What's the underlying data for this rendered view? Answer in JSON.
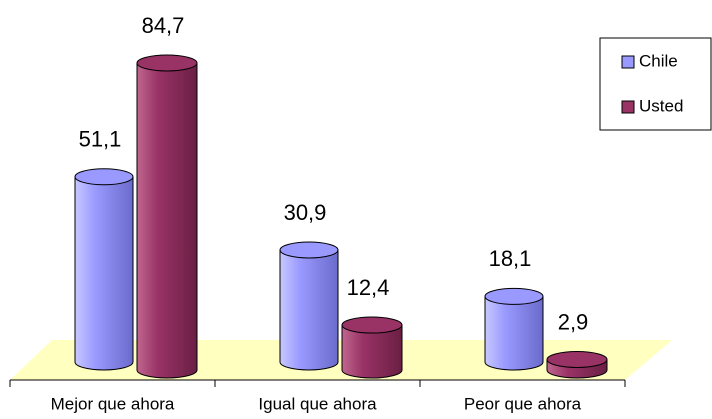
{
  "chart_data": {
    "type": "bar",
    "categories": [
      "Mejor que ahora",
      "Igual que ahora",
      "Peor que ahora"
    ],
    "series": [
      {
        "name": "Chile",
        "color": "#9999ff",
        "values": [
          51.1,
          30.9,
          18.1
        ],
        "value_labels": [
          "51,1",
          "30,9",
          "18,1"
        ]
      },
      {
        "name": "Usted",
        "color": "#993366",
        "values": [
          84.7,
          12.4,
          2.9
        ],
        "value_labels": [
          "84,7",
          "12,4",
          "2,9"
        ]
      }
    ],
    "legend": "right"
  }
}
